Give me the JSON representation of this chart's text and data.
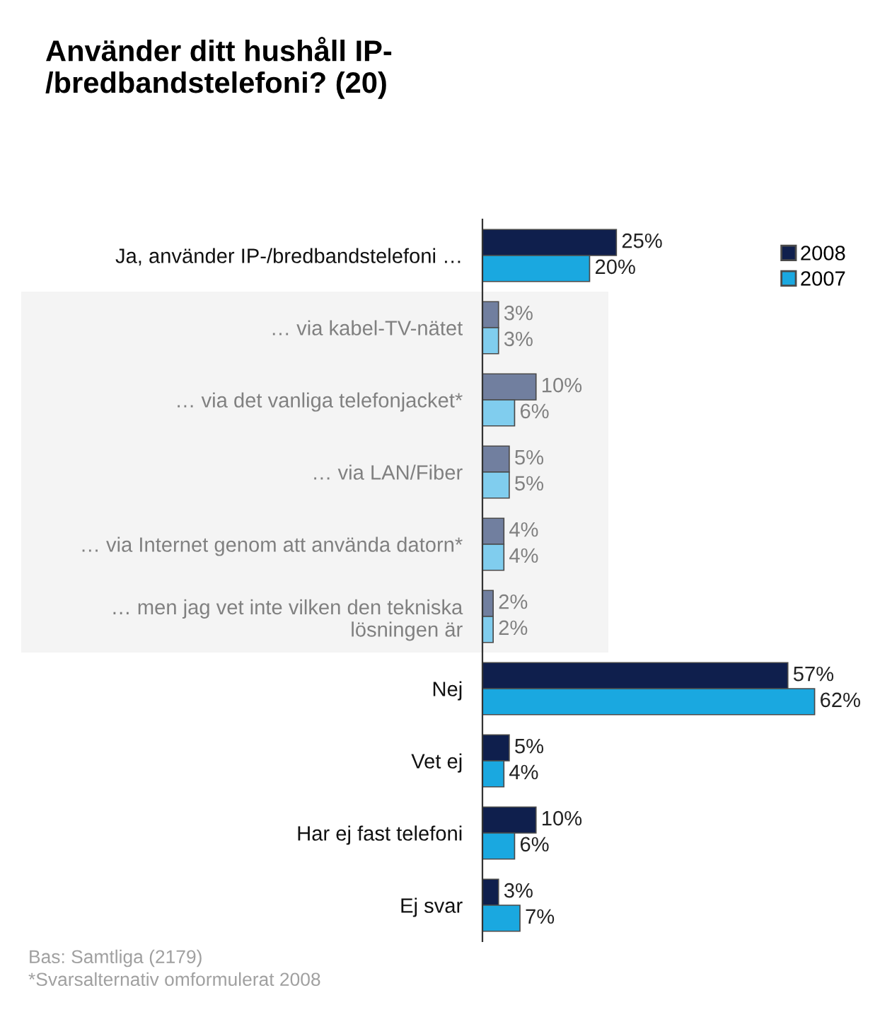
{
  "chart_data": {
    "type": "bar",
    "orientation": "horizontal",
    "title": "Använder ditt hushåll IP-\n/bredbandstelefoni? (20)",
    "categories": [
      "Ja, använder IP-/bredbandstelefoni …",
      "… via kabel-TV-nätet",
      "… via det vanliga telefonjacket*",
      "… via LAN/Fiber",
      "… via Internet genom att använda datorn*",
      "… men jag vet inte vilken den tekniska\nlösningen är",
      "Nej",
      "Vet ej",
      "Har ej fast telefoni",
      "Ej svar"
    ],
    "series": [
      {
        "name": "2008",
        "color": "#0f1f4d",
        "colors": [
          "#0f1f4d",
          "#717f9f",
          "#717f9f",
          "#717f9f",
          "#717f9f",
          "#717f9f",
          "#0f1f4d",
          "#0f1f4d",
          "#0f1f4d",
          "#0f1f4d"
        ],
        "values": [
          25,
          3,
          10,
          5,
          4,
          2,
          57,
          5,
          10,
          3
        ],
        "value_labels": [
          "25%",
          "3%",
          "10%",
          "5%",
          "4%",
          "2%",
          "57%",
          "5%",
          "10%",
          "3%"
        ]
      },
      {
        "name": "2007",
        "color": "#1aa8e0",
        "colors": [
          "#1aa8e0",
          "#80cdee",
          "#80cdee",
          "#80cdee",
          "#80cdee",
          "#80cdee",
          "#1aa8e0",
          "#1aa8e0",
          "#1aa8e0",
          "#1aa8e0"
        ],
        "values": [
          20,
          3,
          6,
          5,
          4,
          2,
          62,
          4,
          6,
          7
        ],
        "value_labels": [
          "20%",
          "3%",
          "6%",
          "5%",
          "4%",
          "2%",
          "62%",
          "4%",
          "6%",
          "7%"
        ]
      }
    ],
    "bands": [
      {
        "axis": "y",
        "from": "… via kabel-TV-nätet",
        "to": "… men jag vet inte vilken den tekniska\nlösningen är",
        "color": "#f4f4f4"
      }
    ],
    "tick_labels": "y",
    "legend": "top right",
    "grid": false,
    "annotations": [
      "Bas: Samtliga (2179)",
      "*Svarsalternativ omformulerat 2008"
    ]
  }
}
